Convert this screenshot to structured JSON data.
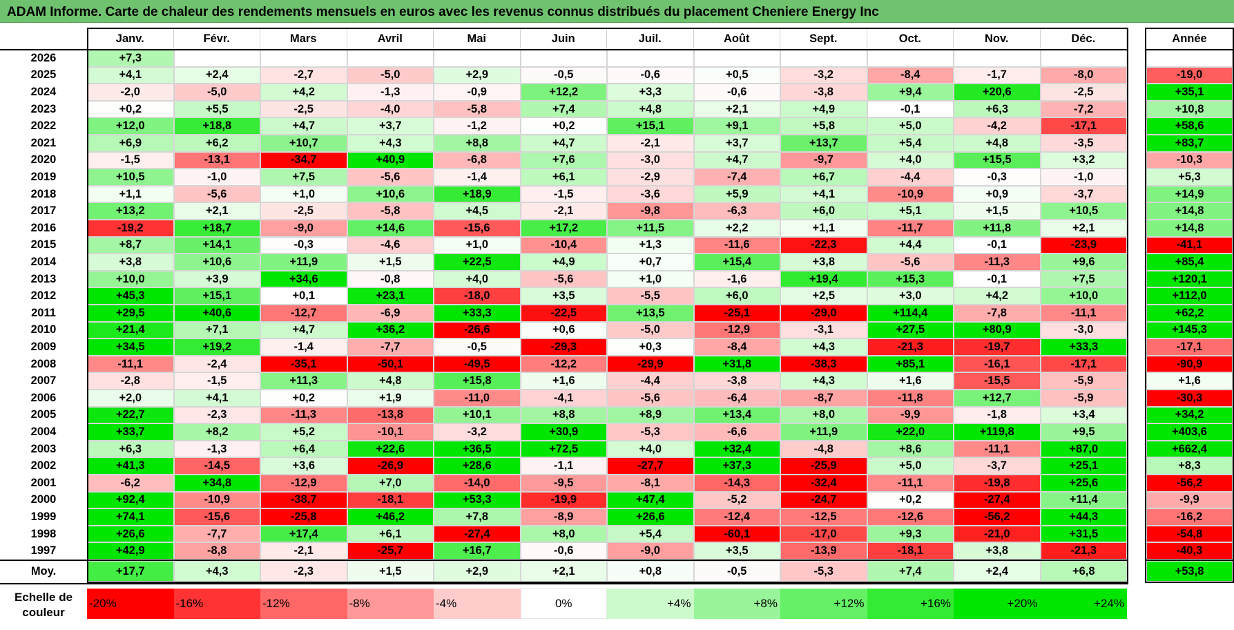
{
  "title": "ADAM Informe. Carte de chaleur des rendements mensuels en euros avec les revenus connus distribués du placement Cheniere Energy Inc",
  "months": [
    "Janv.",
    "Févr.",
    "Mars",
    "Avril",
    "Mai",
    "Juin",
    "Juil.",
    "Août",
    "Sept.",
    "Oct.",
    "Nov.",
    "Déc."
  ],
  "year_header": "Année",
  "avg_label": "Moy.",
  "scale_label": "Echelle de couleur",
  "colors": {
    "max_red": "#ff0000",
    "mid_white": "#ffffff",
    "max_green": "#00e000"
  },
  "chart_data": {
    "type": "heatmap",
    "title": "ADAM Informe. Carte de chaleur des rendements mensuels en euros avec les revenus connus distribués du placement Cheniere Energy Inc",
    "x": [
      "Janv.",
      "Févr.",
      "Mars",
      "Avril",
      "Mai",
      "Juin",
      "Juil.",
      "Août",
      "Sept.",
      "Oct.",
      "Nov.",
      "Déc."
    ],
    "rows": [
      {
        "year": "2026",
        "values": [
          "+7,3",
          "",
          "",
          "",
          "",
          "",
          "",
          "",
          "",
          "",
          "",
          ""
        ],
        "annual": ""
      },
      {
        "year": "2025",
        "values": [
          "+4,1",
          "+2,4",
          "-2,7",
          "-5,0",
          "+2,9",
          "-0,5",
          "-0,6",
          "+0,5",
          "-3,2",
          "-8,4",
          "-1,7",
          "-8,0"
        ],
        "annual": "-19,0"
      },
      {
        "year": "2024",
        "values": [
          "-2,0",
          "-5,0",
          "+4,2",
          "-1,3",
          "-0,9",
          "+12,2",
          "+3,3",
          "-0,6",
          "-3,8",
          "+9,4",
          "+20,6",
          "-2,5"
        ],
        "annual": "+35,1"
      },
      {
        "year": "2023",
        "values": [
          "+0,2",
          "+5,5",
          "-2,5",
          "-4,0",
          "-5,8",
          "+7,4",
          "+4,8",
          "+2,1",
          "+4,9",
          "-0,1",
          "+6,3",
          "-7,2"
        ],
        "annual": "+10,8"
      },
      {
        "year": "2022",
        "values": [
          "+12,0",
          "+18,8",
          "+4,7",
          "+3,7",
          "-1,2",
          "+0,2",
          "+15,1",
          "+9,1",
          "+5,8",
          "+5,0",
          "-4,2",
          "-17,1"
        ],
        "annual": "+58,6"
      },
      {
        "year": "2021",
        "values": [
          "+6,9",
          "+6,2",
          "+10,7",
          "+4,3",
          "+8,8",
          "+4,7",
          "-2,1",
          "+3,7",
          "+13,7",
          "+5,4",
          "+4,8",
          "-3,5"
        ],
        "annual": "+83,7"
      },
      {
        "year": "2020",
        "values": [
          "-1,5",
          "-13,1",
          "-34,7",
          "+40,9",
          "-6,8",
          "+7,6",
          "-3,0",
          "+4,7",
          "-9,7",
          "+4,0",
          "+15,5",
          "+3,2"
        ],
        "annual": "-10,3"
      },
      {
        "year": "2019",
        "values": [
          "+10,5",
          "-1,0",
          "+7,5",
          "-5,6",
          "-1,4",
          "+6,1",
          "-2,9",
          "-7,4",
          "+6,7",
          "-4,4",
          "-0,3",
          "-1,0"
        ],
        "annual": "+5,3"
      },
      {
        "year": "2018",
        "values": [
          "+1,1",
          "-5,6",
          "+1,0",
          "+10,6",
          "+18,9",
          "-1,5",
          "-3,6",
          "+5,9",
          "+4,1",
          "-10,9",
          "+0,9",
          "-3,7"
        ],
        "annual": "+14,9"
      },
      {
        "year": "2017",
        "values": [
          "+13,2",
          "+2,1",
          "-2,5",
          "-5,8",
          "+4,5",
          "-2,1",
          "-9,8",
          "-6,3",
          "+6,0",
          "+5,1",
          "+1,5",
          "+10,5"
        ],
        "annual": "+14,8"
      },
      {
        "year": "2016",
        "values": [
          "-19,2",
          "+18,7",
          "-9,0",
          "+14,6",
          "-15,6",
          "+17,2",
          "+11,5",
          "+2,2",
          "+1,1",
          "-11,7",
          "+11,8",
          "+2,1"
        ],
        "annual": "+14,8"
      },
      {
        "year": "2015",
        "values": [
          "+8,7",
          "+14,1",
          "-0,3",
          "-4,6",
          "+1,0",
          "-10,4",
          "+1,3",
          "-11,6",
          "-22,3",
          "+4,4",
          "-0,1",
          "-23,9"
        ],
        "annual": "-41,1"
      },
      {
        "year": "2014",
        "values": [
          "+3,8",
          "+10,6",
          "+11,9",
          "+1,5",
          "+22,5",
          "+4,9",
          "+0,7",
          "+15,4",
          "+3,8",
          "-5,6",
          "-11,3",
          "+9,6"
        ],
        "annual": "+85,4"
      },
      {
        "year": "2013",
        "values": [
          "+10,0",
          "+3,9",
          "+34,6",
          "-0,8",
          "+4,0",
          "-5,6",
          "+1,0",
          "-1,6",
          "+19,4",
          "+15,3",
          "-0,1",
          "+7,5"
        ],
        "annual": "+120,1"
      },
      {
        "year": "2012",
        "values": [
          "+45,3",
          "+15,1",
          "+0,1",
          "+23,1",
          "-18,0",
          "+3,5",
          "-5,5",
          "+6,0",
          "+2,5",
          "+3,0",
          "+4,2",
          "+10,0"
        ],
        "annual": "+112,0"
      },
      {
        "year": "2011",
        "values": [
          "+29,5",
          "+40,6",
          "-12,7",
          "-6,9",
          "+33,3",
          "-22,5",
          "+13,5",
          "-25,1",
          "-29,0",
          "+114,4",
          "-7,8",
          "-11,1"
        ],
        "annual": "+62,2"
      },
      {
        "year": "2010",
        "values": [
          "+21,4",
          "+7,1",
          "+4,7",
          "+36,2",
          "-26,6",
          "+0,6",
          "-5,0",
          "-12,9",
          "-3,1",
          "+27,5",
          "+80,9",
          "-3,0"
        ],
        "annual": "+145,3"
      },
      {
        "year": "2009",
        "values": [
          "+34,5",
          "+19,2",
          "-1,4",
          "-7,7",
          "-0,5",
          "-29,3",
          "+0,3",
          "-8,4",
          "+4,3",
          "-21,3",
          "-19,7",
          "+33,3"
        ],
        "annual": "-17,1"
      },
      {
        "year": "2008",
        "values": [
          "-11,1",
          "-2,4",
          "-35,1",
          "-50,1",
          "-49,5",
          "-12,2",
          "-29,9",
          "+31,8",
          "-38,3",
          "+85,1",
          "-16,1",
          "-17,1"
        ],
        "annual": "-90,9"
      },
      {
        "year": "2007",
        "values": [
          "-2,8",
          "-1,5",
          "+11,3",
          "+4,8",
          "+15,8",
          "+1,6",
          "-4,4",
          "-3,8",
          "+4,3",
          "+1,6",
          "-15,5",
          "-5,9"
        ],
        "annual": "+1,6"
      },
      {
        "year": "2006",
        "values": [
          "+2,0",
          "+4,1",
          "+0,2",
          "+1,9",
          "-11,0",
          "-4,1",
          "-5,6",
          "-6,4",
          "-8,7",
          "-11,8",
          "+12,7",
          "-5,9"
        ],
        "annual": "-30,3"
      },
      {
        "year": "2005",
        "values": [
          "+22,7",
          "-2,3",
          "-11,3",
          "-13,8",
          "+10,1",
          "+8,8",
          "+8,9",
          "+13,4",
          "+8,0",
          "-9,9",
          "-1,8",
          "+3,4"
        ],
        "annual": "+34,2"
      },
      {
        "year": "2004",
        "values": [
          "+33,7",
          "+8,2",
          "+5,2",
          "-10,1",
          "-3,2",
          "+30,9",
          "-5,3",
          "-6,6",
          "+11,9",
          "+22,0",
          "+119,8",
          "+9,5"
        ],
        "annual": "+403,6"
      },
      {
        "year": "2003",
        "values": [
          "+6,3",
          "-1,3",
          "+6,4",
          "+22,6",
          "+36,5",
          "+72,5",
          "+4,0",
          "+32,4",
          "-4,8",
          "+8,6",
          "-11,1",
          "+87,0"
        ],
        "annual": "+662,4"
      },
      {
        "year": "2002",
        "values": [
          "+41,3",
          "-14,5",
          "+3,6",
          "-26,9",
          "+28,6",
          "-1,1",
          "-27,7",
          "+37,3",
          "-25,9",
          "+5,0",
          "-3,7",
          "+25,1"
        ],
        "annual": "+8,3"
      },
      {
        "year": "2001",
        "values": [
          "-6,2",
          "+34,8",
          "-12,9",
          "+7,0",
          "-14,0",
          "-9,5",
          "-8,1",
          "-14,3",
          "-32,4",
          "-11,1",
          "-19,8",
          "+25,6"
        ],
        "annual": "-56,2"
      },
      {
        "year": "2000",
        "values": [
          "+92,4",
          "-10,9",
          "-38,7",
          "-18,1",
          "+53,3",
          "-19,9",
          "+47,4",
          "-5,2",
          "-24,7",
          "+0,2",
          "-27,4",
          "+11,4"
        ],
        "annual": "-9,9"
      },
      {
        "year": "1999",
        "values": [
          "+74,1",
          "-15,6",
          "-25,8",
          "+46,2",
          "+7,8",
          "-8,9",
          "+26,6",
          "-12,4",
          "-12,5",
          "-12,6",
          "-56,2",
          "+44,3"
        ],
        "annual": "-16,2"
      },
      {
        "year": "1998",
        "values": [
          "+26,6",
          "-7,7",
          "+17,4",
          "+6,1",
          "-27,4",
          "+8,0",
          "+5,4",
          "-60,1",
          "-17,0",
          "+9,3",
          "-21,0",
          "+31,5"
        ],
        "annual": "-54,8"
      },
      {
        "year": "1997",
        "values": [
          "+42,9",
          "-8,8",
          "-2,1",
          "-25,7",
          "+16,7",
          "-0,6",
          "-9,0",
          "+3,5",
          "-13,9",
          "-18,1",
          "+3,8",
          "-21,3"
        ],
        "annual": "-40,3"
      }
    ],
    "averages": [
      "+17,7",
      "+4,3",
      "-2,3",
      "+1,5",
      "+2,9",
      "+2,1",
      "+0,8",
      "-0,5",
      "-5,3",
      "+7,4",
      "+2,4",
      "+6,8"
    ],
    "annual_average": "+53,8",
    "scale": [
      "-20%",
      "-16%",
      "-12%",
      "-8%",
      "-4%",
      "0%",
      "+4%",
      "+8%",
      "+12%",
      "+16%",
      "+20%",
      "+24%"
    ]
  }
}
